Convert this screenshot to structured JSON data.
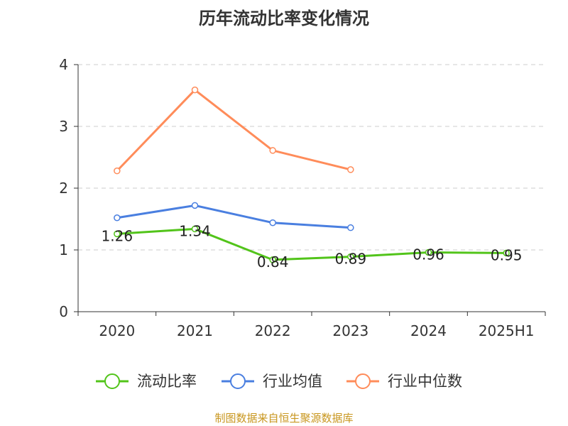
{
  "chart_data": {
    "type": "line",
    "title": "历年流动比率变化情况",
    "categories": [
      "2020",
      "2021",
      "2022",
      "2023",
      "2024",
      "2025H1"
    ],
    "ylim": [
      0,
      4
    ],
    "yticks": [
      "0",
      "1",
      "2",
      "3",
      "4"
    ],
    "grid": true,
    "legend_position": "bottom",
    "series": [
      {
        "name": "流动比率",
        "color": "#52c41a",
        "values": [
          1.26,
          1.34,
          0.84,
          0.89,
          0.96,
          0.95
        ],
        "labels": [
          "1.26",
          "1.34",
          "0.84",
          "0.89",
          "0.96",
          "0.95"
        ]
      },
      {
        "name": "行业均值",
        "color": "#4a7fe0",
        "values": [
          1.52,
          1.72,
          1.44,
          1.36,
          null,
          null
        ]
      },
      {
        "name": "行业中位数",
        "color": "#ff8c5a",
        "values": [
          2.28,
          3.59,
          2.61,
          2.3,
          null,
          null
        ]
      }
    ]
  },
  "footer": "制图数据来自恒生聚源数据库"
}
